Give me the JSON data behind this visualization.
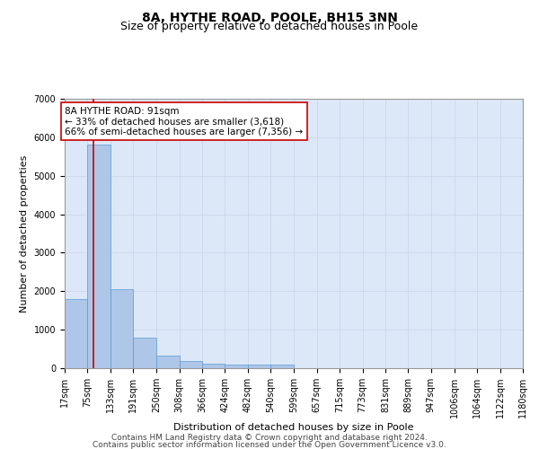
{
  "title": "8A, HYTHE ROAD, POOLE, BH15 3NN",
  "subtitle": "Size of property relative to detached houses in Poole",
  "xlabel": "Distribution of detached houses by size in Poole",
  "ylabel": "Number of detached properties",
  "bar_values": [
    1800,
    5800,
    2050,
    800,
    330,
    190,
    115,
    100,
    90,
    85,
    0,
    0,
    0,
    0,
    0,
    0,
    0,
    0,
    0,
    0
  ],
  "bin_edges": [
    17,
    75,
    133,
    191,
    250,
    308,
    366,
    424,
    482,
    540,
    599,
    657,
    715,
    773,
    831,
    889,
    947,
    1006,
    1064,
    1122,
    1180
  ],
  "x_tick_labels": [
    "17sqm",
    "75sqm",
    "133sqm",
    "191sqm",
    "250sqm",
    "308sqm",
    "366sqm",
    "424sqm",
    "482sqm",
    "540sqm",
    "599sqm",
    "657sqm",
    "715sqm",
    "773sqm",
    "831sqm",
    "889sqm",
    "947sqm",
    "1006sqm",
    "1064sqm",
    "1122sqm",
    "1180sqm"
  ],
  "bar_color": "#aec6e8",
  "bar_edge_color": "#5b9bd5",
  "property_value": 91,
  "red_line_color": "#cc0000",
  "annotation_text": "8A HYTHE ROAD: 91sqm\n← 33% of detached houses are smaller (3,618)\n66% of semi-detached houses are larger (7,356) →",
  "annotation_box_color": "#ffffff",
  "annotation_box_edge_color": "#cc0000",
  "ylim": [
    0,
    7000
  ],
  "yticks": [
    0,
    1000,
    2000,
    3000,
    4000,
    5000,
    6000,
    7000
  ],
  "grid_color": "#c8d4e8",
  "bg_color": "#dce8f8",
  "footer_line1": "Contains HM Land Registry data © Crown copyright and database right 2024.",
  "footer_line2": "Contains public sector information licensed under the Open Government Licence v3.0.",
  "title_fontsize": 10,
  "subtitle_fontsize": 9,
  "axis_label_fontsize": 8,
  "tick_fontsize": 7,
  "annotation_fontsize": 7.5,
  "footer_fontsize": 6.5
}
